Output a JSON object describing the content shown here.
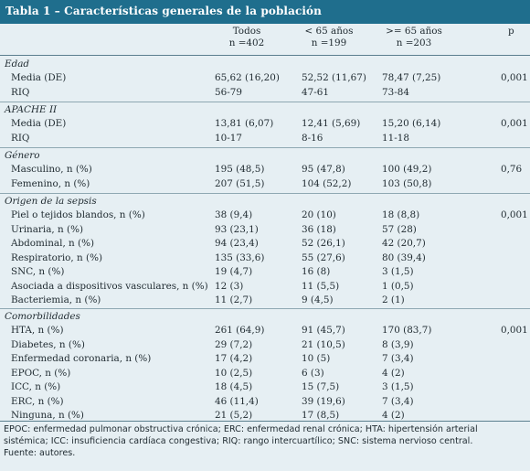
{
  "title": "Tabla 1 – Características generales de la población",
  "columns": [
    {
      "line1": "Todos",
      "line2": "n =402"
    },
    {
      "line1": "< 65 años",
      "line2": "n =199"
    },
    {
      "line1": ">= 65 años",
      "line2": "n =203"
    },
    {
      "line1": "p",
      "line2": ""
    }
  ],
  "sections": [
    {
      "title": "Edad",
      "rows": [
        {
          "label": "Media (DE)",
          "todos": "65,62 (16,20)",
          "menor65": "52,52 (11,67)",
          "mayor65": "78,47 (7,25)",
          "p": "0,001"
        },
        {
          "label": "RIQ",
          "todos": "56-79",
          "menor65": "47-61",
          "mayor65": "73-84",
          "p": ""
        }
      ]
    },
    {
      "title": "APACHE II",
      "rows": [
        {
          "label": "Media (DE)",
          "todos": "13,81 (6,07)",
          "menor65": "12,41 (5,69)",
          "mayor65": "15,20 (6,14)",
          "p": "0,001"
        },
        {
          "label": "RIQ",
          "todos": "10-17",
          "menor65": "8-16",
          "mayor65": "11-18",
          "p": ""
        }
      ]
    },
    {
      "title": "Género",
      "rows": [
        {
          "label": "Masculino, n (%)",
          "todos": "195 (48,5)",
          "menor65": "95 (47,8)",
          "mayor65": "100 (49,2)",
          "p": "0,76"
        },
        {
          "label": "Femenino, n (%)",
          "todos": "207 (51,5)",
          "menor65": "104 (52,2)",
          "mayor65": "103 (50,8)",
          "p": ""
        }
      ]
    },
    {
      "title": "Origen de la sepsis",
      "rows": [
        {
          "label": "Piel o tejidos blandos, n (%)",
          "todos": "38 (9,4)",
          "menor65": "20 (10)",
          "mayor65": "18 (8,8)",
          "p": "0,001"
        },
        {
          "label": "Urinaria, n (%)",
          "todos": "93 (23,1)",
          "menor65": "36 (18)",
          "mayor65": "57 (28)",
          "p": ""
        },
        {
          "label": "Abdominal, n (%)",
          "todos": "94 (23,4)",
          "menor65": "52 (26,1)",
          "mayor65": "42 (20,7)",
          "p": ""
        },
        {
          "label": "Respiratorio, n (%)",
          "todos": "135 (33,6)",
          "menor65": "55 (27,6)",
          "mayor65": "80 (39,4)",
          "p": ""
        },
        {
          "label": "SNC, n (%)",
          "todos": "19 (4,7)",
          "menor65": "16 (8)",
          "mayor65": "3 (1,5)",
          "p": ""
        },
        {
          "label": "Asociada a dispositivos vasculares, n (%)",
          "todos": "12 (3)",
          "menor65": "11 (5,5)",
          "mayor65": "1 (0,5)",
          "p": ""
        },
        {
          "label": "Bacteriemia, n (%)",
          "todos": "11 (2,7)",
          "menor65": "9 (4,5)",
          "mayor65": "2 (1)",
          "p": ""
        }
      ]
    },
    {
      "title": "Comorbilidades",
      "rows": [
        {
          "label": "HTA, n (%)",
          "todos": "261 (64,9)",
          "menor65": "91 (45,7)",
          "mayor65": "170 (83,7)",
          "p": "0,001"
        },
        {
          "label": "Diabetes, n (%)",
          "todos": "29 (7,2)",
          "menor65": "21 (10,5)",
          "mayor65": "8 (3,9)",
          "p": ""
        },
        {
          "label": "Enfermedad coronaria, n (%)",
          "todos": "17 (4,2)",
          "menor65": "10 (5)",
          "mayor65": "7 (3,4)",
          "p": ""
        },
        {
          "label": "EPOC, n (%)",
          "todos": "10 (2,5)",
          "menor65": "6 (3)",
          "mayor65": "4 (2)",
          "p": ""
        },
        {
          "label": "ICC, n (%)",
          "todos": "18 (4,5)",
          "menor65": "15 (7,5)",
          "mayor65": "3 (1,5)",
          "p": ""
        },
        {
          "label": "ERC, n (%)",
          "todos": "46 (11,4)",
          "menor65": "39 (19,6)",
          "mayor65": "7 (3,4)",
          "p": ""
        },
        {
          "label": "Ninguna, n (%)",
          "todos": "21 (5,2)",
          "menor65": "17 (8,5)",
          "mayor65": "4 (2)",
          "p": ""
        }
      ]
    }
  ],
  "footer": {
    "line1": "EPOC: enfermedad pulmonar obstructiva crónica; ERC: enfermedad renal crónica; HTA: hipertensión arterial",
    "line2": "sistémica; ICC: insuficiencia cardíaca congestiva; RIQ: rango intercuartílico; SNC: sistema nervioso central.",
    "line3": "Fuente: autores."
  }
}
